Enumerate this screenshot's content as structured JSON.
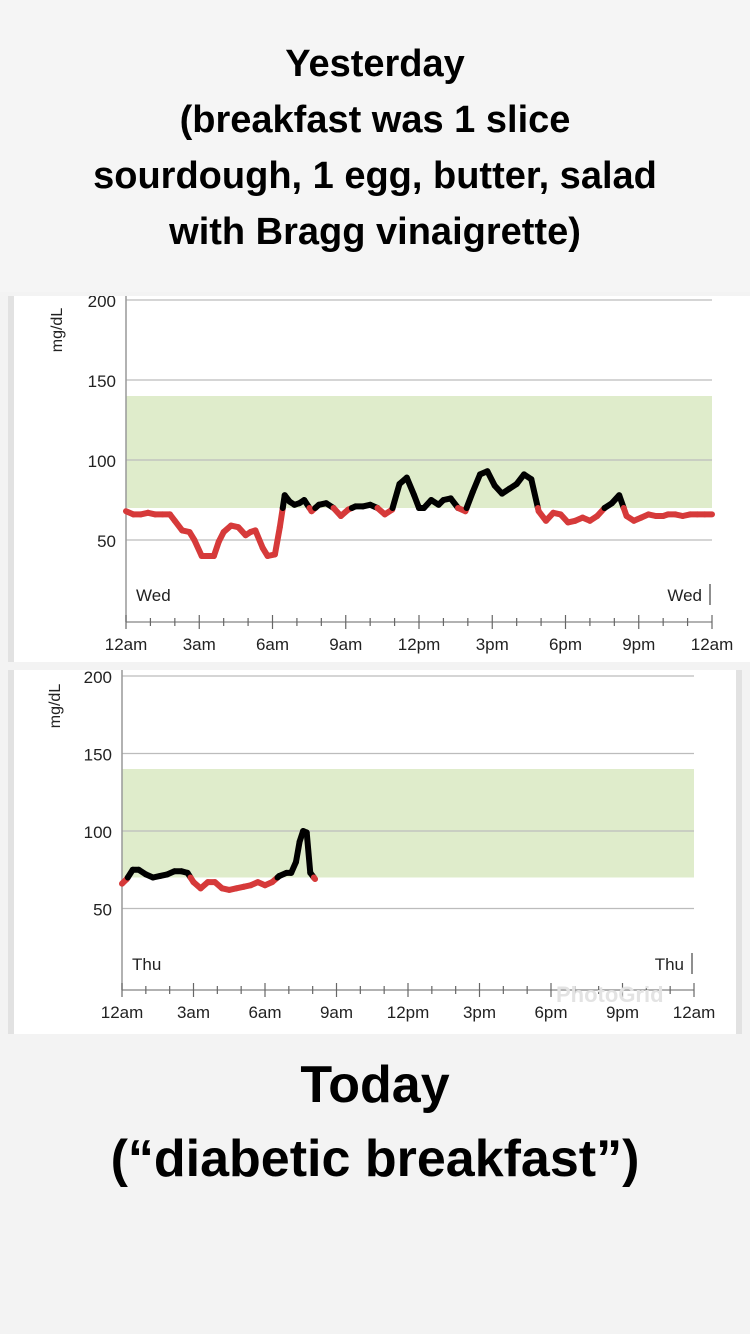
{
  "captions": {
    "top": [
      "Yesterday",
      "(breakfast was 1 slice",
      "sourdough, 1 egg, butter, salad",
      "with Bragg vinaigrette)"
    ],
    "bottom": [
      "Today",
      "(“diabetic breakfast”)"
    ]
  },
  "watermark": "PhotoGrid",
  "chart_data": [
    {
      "type": "line",
      "title": "",
      "ylabel": "mg/dL",
      "ylim": [
        0,
        200
      ],
      "yticks": [
        "50",
        "100",
        "150",
        "200"
      ],
      "xlim": [
        0,
        24
      ],
      "xticks": [
        "12am",
        "3am",
        "6am",
        "9am",
        "12pm",
        "3pm",
        "6pm",
        "9pm",
        "12am"
      ],
      "day_label_left": "Wed",
      "day_label_right": "Wed",
      "target_range": [
        70,
        140
      ],
      "colors": {
        "in_range": "#000000",
        "low": "#d63a3a",
        "target_band": "#dfeccb"
      },
      "grid": true,
      "x": [
        0,
        0.3,
        0.6,
        0.9,
        1.2,
        1.5,
        1.8,
        2.0,
        2.3,
        2.6,
        2.8,
        3.1,
        3.3,
        3.6,
        3.8,
        4.0,
        4.3,
        4.6,
        4.9,
        5.1,
        5.3,
        5.6,
        5.8,
        6.1,
        6.3,
        6.5,
        6.7,
        6.9,
        7.1,
        7.3,
        7.6,
        7.9,
        8.2,
        8.5,
        8.8,
        9.1,
        9.4,
        9.7,
        10.0,
        10.3,
        10.6,
        10.9,
        11.2,
        11.5,
        11.8,
        12.0,
        12.2,
        12.5,
        12.8,
        13.0,
        13.3,
        13.6,
        13.9,
        14.2,
        14.5,
        14.8,
        15.1,
        15.4,
        15.7,
        16.0,
        16.3,
        16.6,
        16.9,
        17.2,
        17.5,
        17.8,
        18.1,
        18.4,
        18.7,
        19.0,
        19.3,
        19.6,
        19.9,
        20.2,
        20.5,
        20.8,
        21.1,
        21.4,
        21.7,
        22.0,
        22.2,
        22.5,
        22.8,
        23.1,
        23.4,
        23.7,
        24.0
      ],
      "values": [
        68,
        66,
        66,
        67,
        66,
        66,
        66,
        62,
        56,
        55,
        50,
        40,
        40,
        40,
        49,
        55,
        59,
        58,
        53,
        55,
        56,
        45,
        40,
        41,
        58,
        78,
        74,
        72,
        73,
        75,
        68,
        72,
        73,
        70,
        65,
        69,
        71,
        71,
        72,
        70,
        66,
        69,
        85,
        89,
        78,
        70,
        70,
        75,
        72,
        75,
        76,
        70,
        68,
        80,
        91,
        93,
        84,
        79,
        82,
        85,
        91,
        88,
        68,
        62,
        67,
        66,
        61,
        62,
        64,
        62,
        65,
        70,
        73,
        78,
        65,
        62,
        64,
        66,
        65,
        65,
        66,
        66,
        65,
        66,
        66,
        66,
        66
      ],
      "plot_values_note": ""
    },
    {
      "type": "line",
      "title": "",
      "ylabel": "mg/dL",
      "ylim": [
        0,
        200
      ],
      "yticks": [
        "50",
        "100",
        "150",
        "200"
      ],
      "xlim": [
        0,
        24
      ],
      "xticks": [
        "12am",
        "3am",
        "6am",
        "9am",
        "12pm",
        "3pm",
        "6pm",
        "9pm",
        "12am"
      ],
      "day_label_left": "Thu",
      "day_label_right": "Thu",
      "target_range": [
        70,
        140
      ],
      "colors": {
        "in_range": "#000000",
        "low": "#d63a3a",
        "target_band": "#dfeccb"
      },
      "grid": true,
      "x": [
        0,
        0.2,
        0.45,
        0.7,
        1.0,
        1.3,
        1.6,
        1.9,
        2.2,
        2.5,
        2.75,
        3.0,
        3.3,
        3.6,
        3.9,
        4.2,
        4.5,
        4.8,
        5.1,
        5.4,
        5.7,
        6.0,
        6.3,
        6.6,
        6.9,
        7.1,
        7.3,
        7.45,
        7.6,
        7.75,
        7.9,
        8.1
      ],
      "values": [
        66,
        69,
        75,
        75,
        72,
        70,
        71,
        72,
        74,
        74,
        73,
        67,
        63,
        67,
        67,
        63,
        62,
        63,
        64,
        65,
        67,
        65,
        67,
        71,
        73,
        73,
        80,
        93,
        100,
        99,
        73,
        69
      ]
    }
  ]
}
